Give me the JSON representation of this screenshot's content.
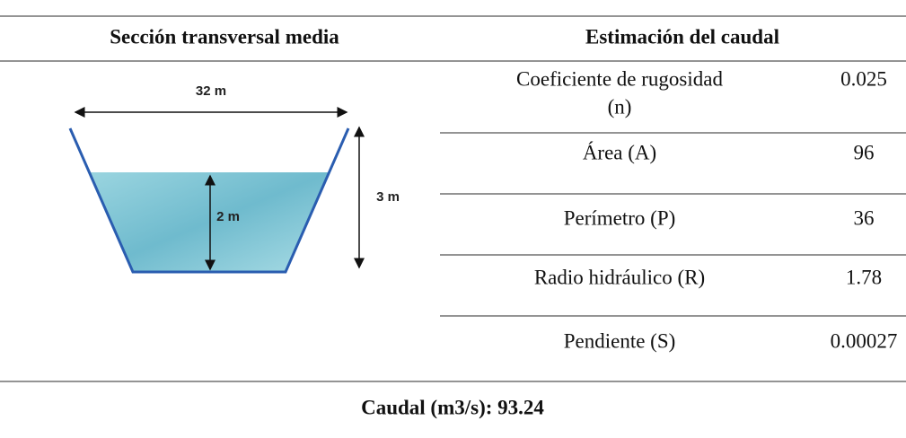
{
  "table": {
    "headers": [
      "Sección transversal media",
      "Estimación del caudal"
    ],
    "diagram": {
      "top_width": "32 m",
      "depth": "3 m",
      "water_depth": "2 m"
    },
    "rows": [
      [
        "Coeficiente de rugosidad",
        "(n)",
        "0.025"
      ],
      [
        "Área (A)",
        "96"
      ],
      [
        "Perímetro (P)",
        "36"
      ],
      [
        "Radio hidráulico (R)",
        "1.78"
      ],
      [
        "Pendiente (S)",
        "0.00027"
      ]
    ],
    "footer": "Caudal (m3/s): 93.24"
  }
}
